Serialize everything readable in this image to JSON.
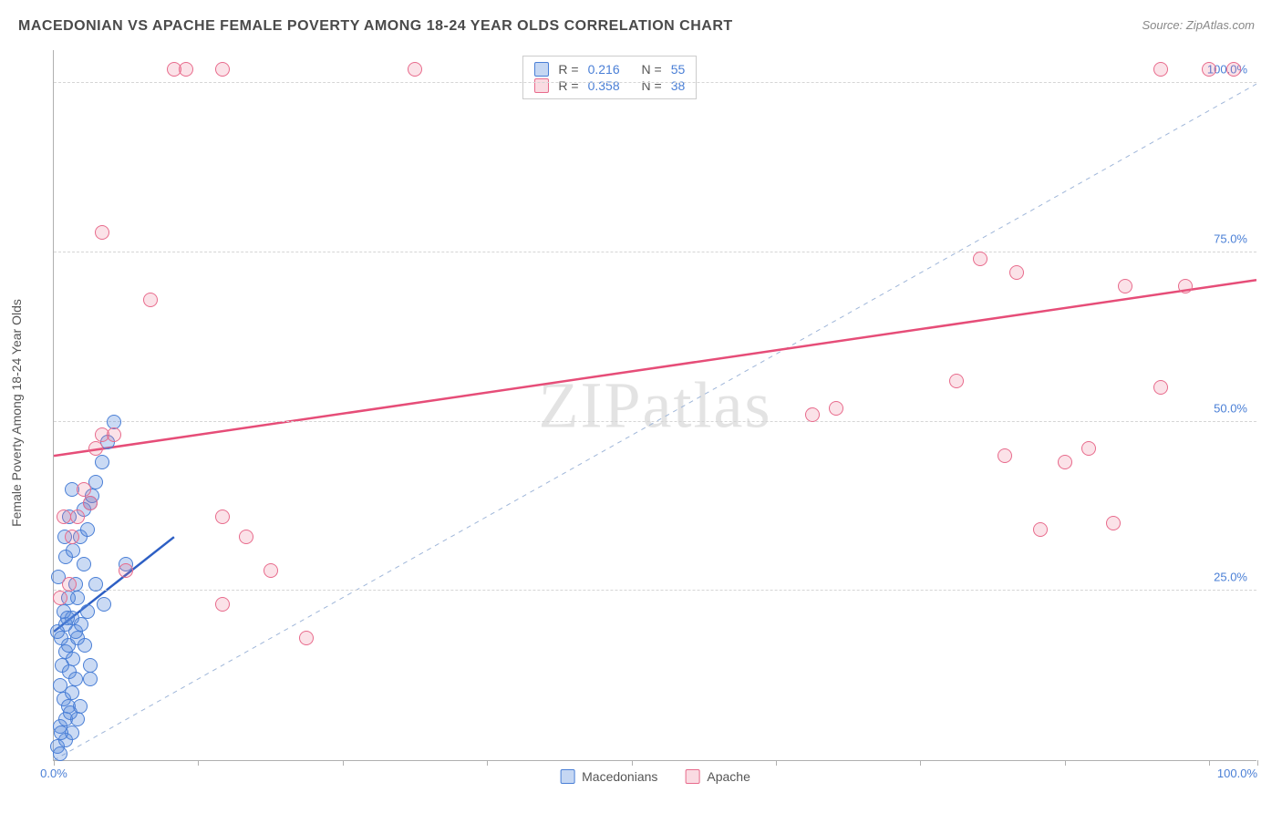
{
  "header": {
    "title": "MACEDONIAN VS APACHE FEMALE POVERTY AMONG 18-24 YEAR OLDS CORRELATION CHART",
    "source": "Source: ZipAtlas.com"
  },
  "chart": {
    "type": "scatter",
    "y_label": "Female Poverty Among 18-24 Year Olds",
    "watermark": "ZIPatlas",
    "xlim": [
      0,
      100
    ],
    "ylim": [
      0,
      105
    ],
    "x_ticks": [
      0,
      12,
      24,
      36,
      48,
      60,
      72,
      84,
      96,
      100
    ],
    "x_tick_labels": {
      "0": "0.0%",
      "100": "100.0%"
    },
    "y_ticks": [
      25,
      50,
      75,
      100
    ],
    "y_tick_labels": {
      "25": "25.0%",
      "50": "50.0%",
      "75": "75.0%",
      "100": "100.0%"
    },
    "grid_color": "#d5d5d5",
    "background_color": "#ffffff",
    "marker_size": 16,
    "diagonal": {
      "color": "#9fb6d9",
      "dash": true
    },
    "stats_legend": [
      {
        "swatch": "blue",
        "r_label": "R =",
        "r_value": "0.216",
        "n_label": "N =",
        "n_value": "55"
      },
      {
        "swatch": "pink",
        "r_label": "R =",
        "r_value": "0.358",
        "n_label": "N =",
        "n_value": "38"
      }
    ],
    "bottom_legend": [
      {
        "swatch": "blue",
        "label": "Macedonians"
      },
      {
        "swatch": "pink",
        "label": "Apache"
      }
    ],
    "series": {
      "macedonians": {
        "color_fill": "rgba(90,140,220,0.32)",
        "color_stroke": "#4a7fd6",
        "regression": {
          "x1": 0,
          "y1": 19,
          "x2": 10,
          "y2": 33,
          "color": "#2d5fc4",
          "width": 2.5
        },
        "points": [
          [
            0.3,
            2
          ],
          [
            0.5,
            1
          ],
          [
            0.5,
            5
          ],
          [
            1,
            3
          ],
          [
            1,
            6
          ],
          [
            0.8,
            9
          ],
          [
            1.2,
            8
          ],
          [
            0.5,
            11
          ],
          [
            1.5,
            10
          ],
          [
            0.7,
            14
          ],
          [
            1.3,
            13
          ],
          [
            1.8,
            12
          ],
          [
            1,
            16
          ],
          [
            1.6,
            15
          ],
          [
            0.6,
            18
          ],
          [
            1.2,
            17
          ],
          [
            2,
            18
          ],
          [
            1,
            20
          ],
          [
            1.8,
            19
          ],
          [
            2.3,
            20
          ],
          [
            0.8,
            22
          ],
          [
            1.5,
            21
          ],
          [
            2,
            24
          ],
          [
            1.2,
            24
          ],
          [
            1.8,
            26
          ],
          [
            2.5,
            29
          ],
          [
            1,
            30
          ],
          [
            1.6,
            31
          ],
          [
            2.2,
            33
          ],
          [
            2.8,
            34
          ],
          [
            1.3,
            36
          ],
          [
            2.5,
            37
          ],
          [
            3,
            38
          ],
          [
            3.2,
            39
          ],
          [
            1.5,
            40
          ],
          [
            3.5,
            41
          ],
          [
            4,
            44
          ],
          [
            4.5,
            47
          ],
          [
            5,
            50
          ],
          [
            6,
            29
          ],
          [
            3,
            12
          ],
          [
            3,
            14
          ],
          [
            2,
            6
          ],
          [
            1.5,
            4
          ],
          [
            2.2,
            8
          ],
          [
            0.4,
            27
          ],
          [
            0.9,
            33
          ],
          [
            1.1,
            21
          ],
          [
            0.3,
            19
          ],
          [
            2.8,
            22
          ],
          [
            3.5,
            26
          ],
          [
            4.2,
            23
          ],
          [
            0.6,
            4
          ],
          [
            1.4,
            7
          ],
          [
            2.6,
            17
          ]
        ]
      },
      "apache": {
        "color_fill": "rgba(235,110,140,0.20)",
        "color_stroke": "#e86b8c",
        "regression": {
          "x1": 0,
          "y1": 45,
          "x2": 100,
          "y2": 71,
          "color": "#e64d78",
          "width": 2.5
        },
        "points": [
          [
            0.5,
            24
          ],
          [
            2,
            36
          ],
          [
            3,
            38
          ],
          [
            1.5,
            33
          ],
          [
            2.5,
            40
          ],
          [
            3.5,
            46
          ],
          [
            4,
            48
          ],
          [
            5,
            48
          ],
          [
            0.8,
            36
          ],
          [
            1.3,
            26
          ],
          [
            6,
            28
          ],
          [
            8,
            68
          ],
          [
            4,
            78
          ],
          [
            10,
            102
          ],
          [
            11,
            102
          ],
          [
            14,
            102
          ],
          [
            30,
            102
          ],
          [
            14,
            36
          ],
          [
            16,
            33
          ],
          [
            18,
            28
          ],
          [
            21,
            18
          ],
          [
            14,
            23
          ],
          [
            65,
            52
          ],
          [
            75,
            56
          ],
          [
            77,
            74
          ],
          [
            80,
            72
          ],
          [
            82,
            34
          ],
          [
            84,
            44
          ],
          [
            86,
            46
          ],
          [
            88,
            35
          ],
          [
            89,
            70
          ],
          [
            92,
            55
          ],
          [
            92,
            102
          ],
          [
            94,
            70
          ],
          [
            96,
            102
          ],
          [
            98,
            102
          ],
          [
            79,
            45
          ],
          [
            63,
            51
          ]
        ]
      }
    }
  }
}
